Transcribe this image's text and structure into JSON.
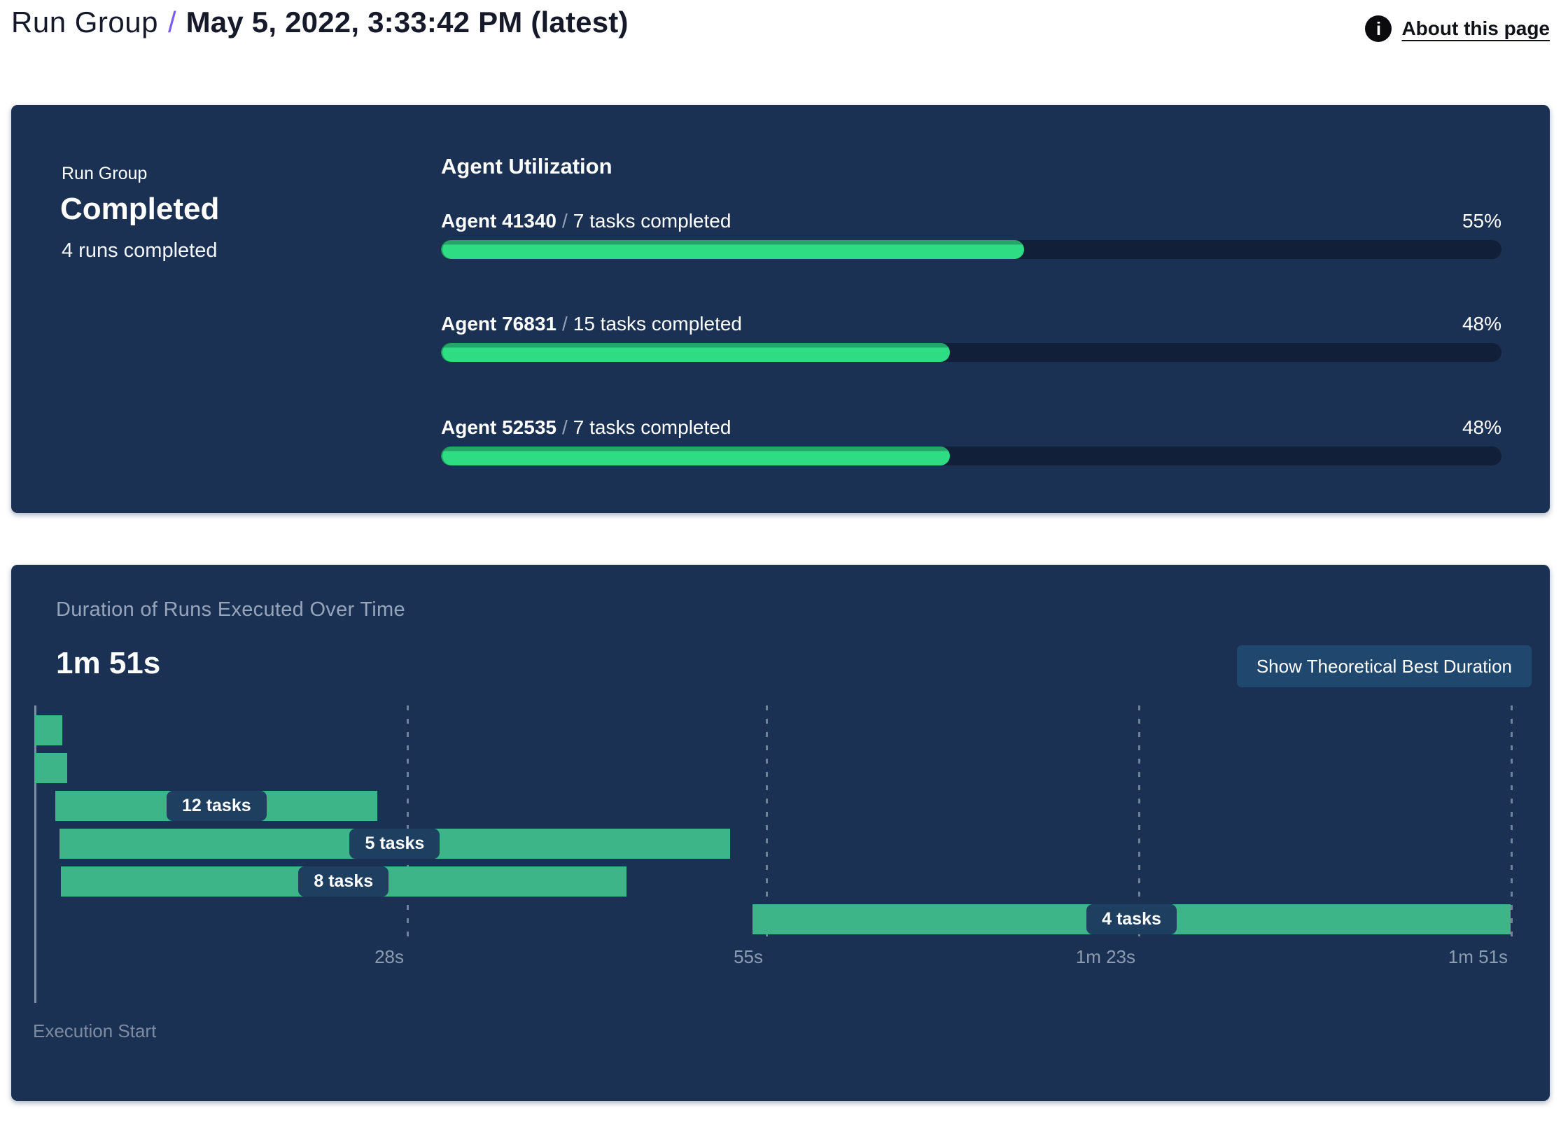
{
  "header": {
    "breadcrumb": "Run Group",
    "separator": "/",
    "page_title": "May 5, 2022, 3:33:42 PM (latest)",
    "about_link_label": "About this page"
  },
  "summary_card": {
    "group_label": "Run Group",
    "status": "Completed",
    "runs_summary": "4 runs completed",
    "agent_utilization": {
      "title": "Agent Utilization",
      "separator": "/",
      "agents": [
        {
          "name": "Agent 41340",
          "tasks_completed": "7 tasks completed",
          "percent": 55,
          "percent_label": "55%"
        },
        {
          "name": "Agent 76831",
          "tasks_completed": "15 tasks completed",
          "percent": 48,
          "percent_label": "48%"
        },
        {
          "name": "Agent 52535",
          "tasks_completed": "7 tasks completed",
          "percent": 48,
          "percent_label": "48%"
        }
      ]
    }
  },
  "duration_card": {
    "title": "Duration of Runs Executed Over Time",
    "max_duration_label": "1m 51s",
    "button_label": "Show Theoretical Best Duration",
    "execution_start_label": "Execution Start"
  },
  "chart_data": [
    {
      "type": "bar",
      "variant": "horizontal-progress",
      "title": "Agent Utilization",
      "categories": [
        "Agent 41340",
        "Agent 76831",
        "Agent 52535"
      ],
      "values": [
        55,
        48,
        48
      ],
      "value_unit": "percent",
      "xlim": [
        0,
        100
      ],
      "bar_color": "#2EDC83",
      "track_color": "#111F38"
    },
    {
      "type": "bar",
      "variant": "gantt",
      "title": "Duration of Runs Executed Over Time",
      "total_label": "1m 51s",
      "x_unit": "seconds",
      "xlim": [
        0,
        111
      ],
      "x_ticks": [
        {
          "label": "28s",
          "seconds": 28
        },
        {
          "label": "55s",
          "seconds": 55
        },
        {
          "label": "1m 23s",
          "seconds": 83
        },
        {
          "label": "1m 51s",
          "seconds": 111
        }
      ],
      "runs": [
        {
          "label": "",
          "start_s": 0,
          "end_s": 2.1
        },
        {
          "label": "",
          "start_s": 0,
          "end_s": 2.5
        },
        {
          "label": "12 tasks",
          "start_s": 1.6,
          "end_s": 25.8
        },
        {
          "label": "5 tasks",
          "start_s": 1.9,
          "end_s": 52.3
        },
        {
          "label": "8 tasks",
          "start_s": 2.0,
          "end_s": 44.5
        },
        {
          "label": "4 tasks",
          "start_s": 54.0,
          "end_s": 111
        }
      ],
      "bar_color": "#3EB489",
      "grid": "dashed-vertical",
      "annotation": "Execution Start"
    }
  ],
  "colors": {
    "page_bg": "#FFFFFF",
    "card_bg": "#1B3153",
    "accent_purple": "#7A5CF0",
    "progress_green": "#2EDC83",
    "progress_green_dark": "#27A468",
    "gantt_green": "#3EB489",
    "track": "#111F38",
    "pill_bg": "#1F3F60",
    "button_bg": "#20486E",
    "muted_text": "#97A5BA",
    "tick_text": "#8B9CB1"
  }
}
